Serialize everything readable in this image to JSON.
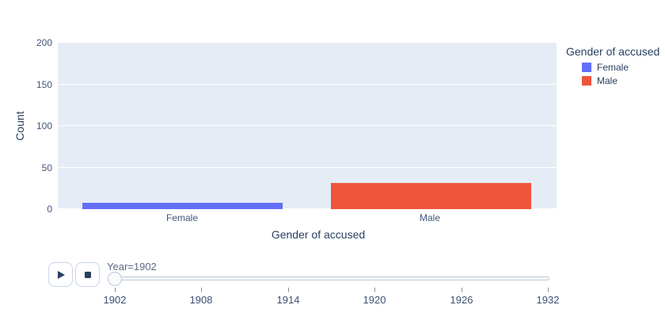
{
  "figure": {
    "plot_bgcolor": "#E5ECF6",
    "paper_bgcolor": "#ffffff"
  },
  "chart_data": {
    "type": "bar",
    "title": "",
    "xlabel": "Gender of accused",
    "ylabel": "Count",
    "categories": [
      "Female",
      "Male"
    ],
    "values": [
      8,
      31
    ],
    "colors": [
      "#636EFA",
      "#EF553B"
    ],
    "ylim": [
      0,
      200
    ],
    "yticks": [
      0,
      50,
      100,
      150,
      200
    ],
    "grid": true,
    "legend": {
      "title": "Gender of accused",
      "position": "right",
      "entries": [
        {
          "label": "Female",
          "color": "#636EFA"
        },
        {
          "label": "Male",
          "color": "#EF553B"
        }
      ]
    }
  },
  "controls": {
    "play_icon": "play-triangle",
    "stop_icon": "stop-square"
  },
  "slider": {
    "current_label": "Year=1902",
    "value": "1902",
    "ticks": [
      "1902",
      "1908",
      "1914",
      "1920",
      "1926",
      "1932"
    ]
  }
}
